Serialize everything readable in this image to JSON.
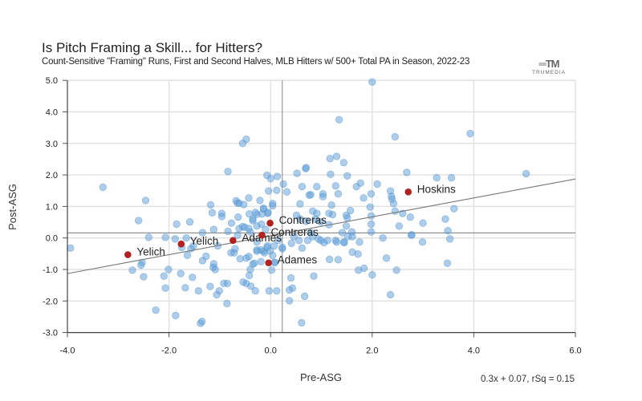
{
  "chart_data": {
    "type": "scatter",
    "title": "Is Pitch Framing a Skill... for Hitters?",
    "subtitle": "Count-Sensitive \"Framing\" Runs, First and Second Halves, MLB Hitters w/ 500+ Total PA in Season, 2022-23",
    "xlabel": "Pre-ASG",
    "ylabel": "Post-ASG",
    "xlim": [
      -4,
      6
    ],
    "ylim": [
      -3,
      5
    ],
    "xticks": [
      "-4.0",
      "-2.0",
      "0.0",
      "2.0",
      "4.0",
      "6.0"
    ],
    "yticks": [
      "5.0",
      "4.0",
      "3.0",
      "2.0",
      "1.0",
      "0.0",
      "-1.0",
      "-2.0",
      "-3.0"
    ],
    "grid": true,
    "fit": {
      "slope": 0.3,
      "intercept": 0.07,
      "label": "0.3x + 0.07, rSq = 0.15"
    },
    "reference_lines": {
      "x": 0.23,
      "y": 0.16
    },
    "colors": {
      "points": "#5b9bd5",
      "highlight": "#b22222",
      "fit_line": "#777777"
    },
    "highlighted": [
      {
        "label": "Yelich",
        "x": -2.81,
        "y": -0.53
      },
      {
        "label": "Yelich",
        "x": -1.76,
        "y": -0.19
      },
      {
        "label": "Adames",
        "x": -0.74,
        "y": -0.08
      },
      {
        "label": "Adames",
        "x": -0.04,
        "y": -0.79
      },
      {
        "label": "Contreras",
        "x": -0.01,
        "y": 0.47
      },
      {
        "label": "Contreras",
        "x": -0.17,
        "y": 0.09
      },
      {
        "label": "Hoskins",
        "x": 2.71,
        "y": 1.46
      }
    ],
    "points": [
      [
        -3.94,
        -0.32
      ],
      [
        -3.3,
        1.61
      ],
      [
        -2.46,
        1.19
      ],
      [
        -2.6,
        0.55
      ],
      [
        -2.4,
        0.02
      ],
      [
        -2.53,
        -0.78
      ],
      [
        -2.55,
        -0.86
      ],
      [
        -2.72,
        -1.02
      ],
      [
        -2.5,
        -1.23
      ],
      [
        -2.26,
        -2.29
      ],
      [
        -1.87,
        -2.46
      ],
      [
        -2.07,
        0.02
      ],
      [
        -1.85,
        0.44
      ],
      [
        -2.01,
        -1.0
      ],
      [
        -2.1,
        -1.21
      ],
      [
        -2.07,
        -1.59
      ],
      [
        -1.77,
        -1.13
      ],
      [
        -1.68,
        -1.58
      ],
      [
        -1.54,
        -1.25
      ],
      [
        -1.59,
        0.51
      ],
      [
        -1.66,
        0.0
      ],
      [
        -1.88,
        -0.03
      ],
      [
        -1.75,
        -0.3
      ],
      [
        -1.64,
        -0.55
      ],
      [
        -1.57,
        -0.34
      ],
      [
        -1.52,
        -0.25
      ],
      [
        -1.34,
        0.17
      ],
      [
        -1.12,
        0.27
      ],
      [
        -1.18,
        1.05
      ],
      [
        -1.15,
        0.8
      ],
      [
        -0.96,
        0.78
      ],
      [
        -0.96,
        0.68
      ],
      [
        -0.77,
        0.47
      ],
      [
        -1.27,
        -0.58
      ],
      [
        -1.34,
        -0.72
      ],
      [
        -1.12,
        -0.82
      ],
      [
        -1.09,
        -1.0
      ],
      [
        -1.13,
        -0.93
      ],
      [
        -1.42,
        -1.68
      ],
      [
        -1.19,
        -1.54
      ],
      [
        -1.06,
        -1.8
      ],
      [
        -1.01,
        -1.68
      ],
      [
        -0.86,
        -2.08
      ],
      [
        -1.35,
        -2.65
      ],
      [
        -1.38,
        -2.71
      ],
      [
        -0.92,
        -1.44
      ],
      [
        -0.85,
        -1.44
      ],
      [
        -0.54,
        -1.4
      ],
      [
        -0.48,
        -1.44
      ],
      [
        -0.39,
        -1.53
      ],
      [
        -0.3,
        -1.68
      ],
      [
        -0.42,
        -1.19
      ],
      [
        -0.4,
        -1.0
      ],
      [
        -0.35,
        -0.83
      ],
      [
        -0.48,
        -0.64
      ],
      [
        -0.6,
        -0.66
      ],
      [
        -0.78,
        -0.47
      ],
      [
        -0.72,
        -0.47
      ],
      [
        -0.7,
        -0.34
      ],
      [
        -0.65,
        0.09
      ],
      [
        -0.62,
        0.3
      ],
      [
        -0.55,
        0.36
      ],
      [
        -0.42,
        0.76
      ],
      [
        -0.62,
        1.1
      ],
      [
        -0.64,
        0.66
      ],
      [
        -0.43,
        1.27
      ],
      [
        -0.21,
        1.19
      ],
      [
        -0.27,
        0.75
      ],
      [
        -0.14,
        0.92
      ],
      [
        -0.06,
        0.78
      ],
      [
        -0.35,
        0.55
      ],
      [
        -0.27,
        0.38
      ],
      [
        -0.43,
        0.3
      ],
      [
        -0.19,
        -0.38
      ],
      [
        -0.12,
        -0.47
      ],
      [
        -0.07,
        -0.3
      ],
      [
        -0.01,
        -0.41
      ],
      [
        -0.27,
        -0.38
      ],
      [
        -0.19,
        -0.75
      ],
      [
        0.02,
        -1.02
      ],
      [
        -0.03,
        -1.68
      ],
      [
        0.12,
        -1.68
      ],
      [
        0.07,
        -0.78
      ],
      [
        -1.04,
        -0.25
      ],
      [
        -0.84,
        0.21
      ],
      [
        0.52,
        2.05
      ],
      [
        0.69,
        2.2
      ],
      [
        1.18,
        2.02
      ],
      [
        1.51,
        1.97
      ],
      [
        1.44,
        2.39
      ],
      [
        0.62,
        1.63
      ],
      [
        0.91,
        1.63
      ],
      [
        1.28,
        1.65
      ],
      [
        1.69,
        1.63
      ],
      [
        2.1,
        1.71
      ],
      [
        1.98,
        1.4
      ],
      [
        1.83,
        1.27
      ],
      [
        0.79,
        1.37
      ],
      [
        1.03,
        1.4
      ],
      [
        1.33,
        1.4
      ],
      [
        0.32,
        1.46
      ],
      [
        0.12,
        1.51
      ],
      [
        0.25,
        1.71
      ],
      [
        0.58,
        1.08
      ],
      [
        1.2,
        1.04
      ],
      [
        0.83,
        0.85
      ],
      [
        0.91,
        0.78
      ],
      [
        1.15,
        0.78
      ],
      [
        1.22,
        0.74
      ],
      [
        1.57,
        0.87
      ],
      [
        1.49,
        0.72
      ],
      [
        1.51,
        0.64
      ],
      [
        0.51,
        0.72
      ],
      [
        0.58,
        0.6
      ],
      [
        0.7,
        0.53
      ],
      [
        0.88,
        0.6
      ],
      [
        0.99,
        0.51
      ],
      [
        1.15,
        0.42
      ],
      [
        1.49,
        0.38
      ],
      [
        1.41,
        0.17
      ],
      [
        1.52,
        0.04
      ],
      [
        1.61,
        0.04
      ],
      [
        0.79,
        0.17
      ],
      [
        0.83,
        0.04
      ],
      [
        0.99,
        -0.08
      ],
      [
        1.12,
        -0.08
      ],
      [
        1.28,
        -0.08
      ],
      [
        1.44,
        -0.13
      ],
      [
        0.73,
        -0.08
      ],
      [
        0.62,
        -0.32
      ],
      [
        0.56,
        -0.08
      ],
      [
        0.46,
        0.04
      ],
      [
        0.41,
        -0.17
      ],
      [
        0.23,
        -0.34
      ],
      [
        1.61,
        -0.45
      ],
      [
        1.72,
        -0.51
      ],
      [
        1.16,
        -0.68
      ],
      [
        1.33,
        -0.69
      ],
      [
        1.73,
        -1.02
      ],
      [
        1.84,
        -0.96
      ],
      [
        2.28,
        -0.64
      ],
      [
        2.21,
        0.0
      ],
      [
        1.98,
        0.19
      ],
      [
        1.98,
        0.44
      ],
      [
        1.98,
        0.7
      ],
      [
        2.39,
        1.23
      ],
      [
        2.36,
        1.49
      ],
      [
        2.45,
        0.85
      ],
      [
        2.53,
        0.38
      ],
      [
        -0.07,
        1.99
      ],
      [
        0.0,
        1.88
      ],
      [
        0.13,
        1.95
      ],
      [
        -0.04,
        1.49
      ],
      [
        0.04,
        1.09
      ],
      [
        0.04,
        1.02
      ],
      [
        -0.53,
        1.06
      ],
      [
        -0.3,
        0.81
      ],
      [
        -0.17,
        0.76
      ],
      [
        -0.05,
        0.81
      ],
      [
        -0.35,
        0.6
      ],
      [
        -0.18,
        0.44
      ],
      [
        -0.51,
        0.34
      ],
      [
        -0.1,
        0.27
      ],
      [
        -0.4,
        0.19
      ],
      [
        -0.27,
        -0.13
      ],
      [
        0.15,
        -0.08
      ],
      [
        -0.06,
        -0.25
      ],
      [
        0.07,
        -0.25
      ],
      [
        0.23,
        -0.3
      ],
      [
        -0.27,
        -0.42
      ],
      [
        -0.14,
        -0.42
      ],
      [
        0.04,
        -0.55
      ],
      [
        -0.43,
        -0.59
      ],
      [
        -0.32,
        -0.8
      ],
      [
        0.09,
        -0.78
      ],
      [
        2.0,
        -1.17
      ],
      [
        2.48,
        -1.02
      ],
      [
        2.36,
        -1.8
      ],
      [
        0.4,
        -1.27
      ],
      [
        0.43,
        -1.59
      ],
      [
        0.37,
        -1.65
      ],
      [
        0.67,
        -1.85
      ],
      [
        0.85,
        -1.21
      ],
      [
        0.37,
        -1.99
      ],
      [
        0.61,
        -2.69
      ],
      [
        2.99,
        -0.13
      ],
      [
        2.77,
        0.09
      ],
      [
        1.75,
        -0.13
      ],
      [
        1.45,
        -0.15
      ],
      [
        1.3,
        -0.13
      ],
      [
        1.05,
        -0.15
      ],
      [
        0.94,
        -0.03
      ],
      [
        1.77,
        1.74
      ],
      [
        2.68,
        2.08
      ],
      [
        3.27,
        1.91
      ],
      [
        3.56,
        1.91
      ],
      [
        2.38,
        1.32
      ],
      [
        2.42,
        1.09
      ],
      [
        2.6,
        0.78
      ],
      [
        2.75,
        0.66
      ],
      [
        3.0,
        0.47
      ],
      [
        2.78,
        0.1
      ],
      [
        3.61,
        0.93
      ],
      [
        3.44,
        0.6
      ],
      [
        3.49,
        0.23
      ],
      [
        3.53,
        -0.03
      ],
      [
        3.48,
        -0.8
      ],
      [
        1.96,
        0.98
      ],
      [
        1.6,
        0.19
      ],
      [
        2.0,
        4.95
      ],
      [
        1.35,
        3.75
      ],
      [
        2.45,
        3.21
      ],
      [
        3.93,
        3.31
      ],
      [
        1.17,
        2.52
      ],
      [
        1.3,
        2.59
      ],
      [
        0.7,
        2.23
      ],
      [
        0.76,
        1.36
      ],
      [
        1.03,
        1.31
      ],
      [
        5.03,
        2.04
      ],
      [
        -0.55,
        3.0
      ],
      [
        -0.48,
        3.13
      ],
      [
        -0.84,
        2.11
      ],
      [
        -0.68,
        1.18
      ],
      [
        -0.65,
        1.11
      ],
      [
        -0.14,
        0.94
      ]
    ]
  },
  "logo": {
    "text": "TRUMEDIA"
  }
}
